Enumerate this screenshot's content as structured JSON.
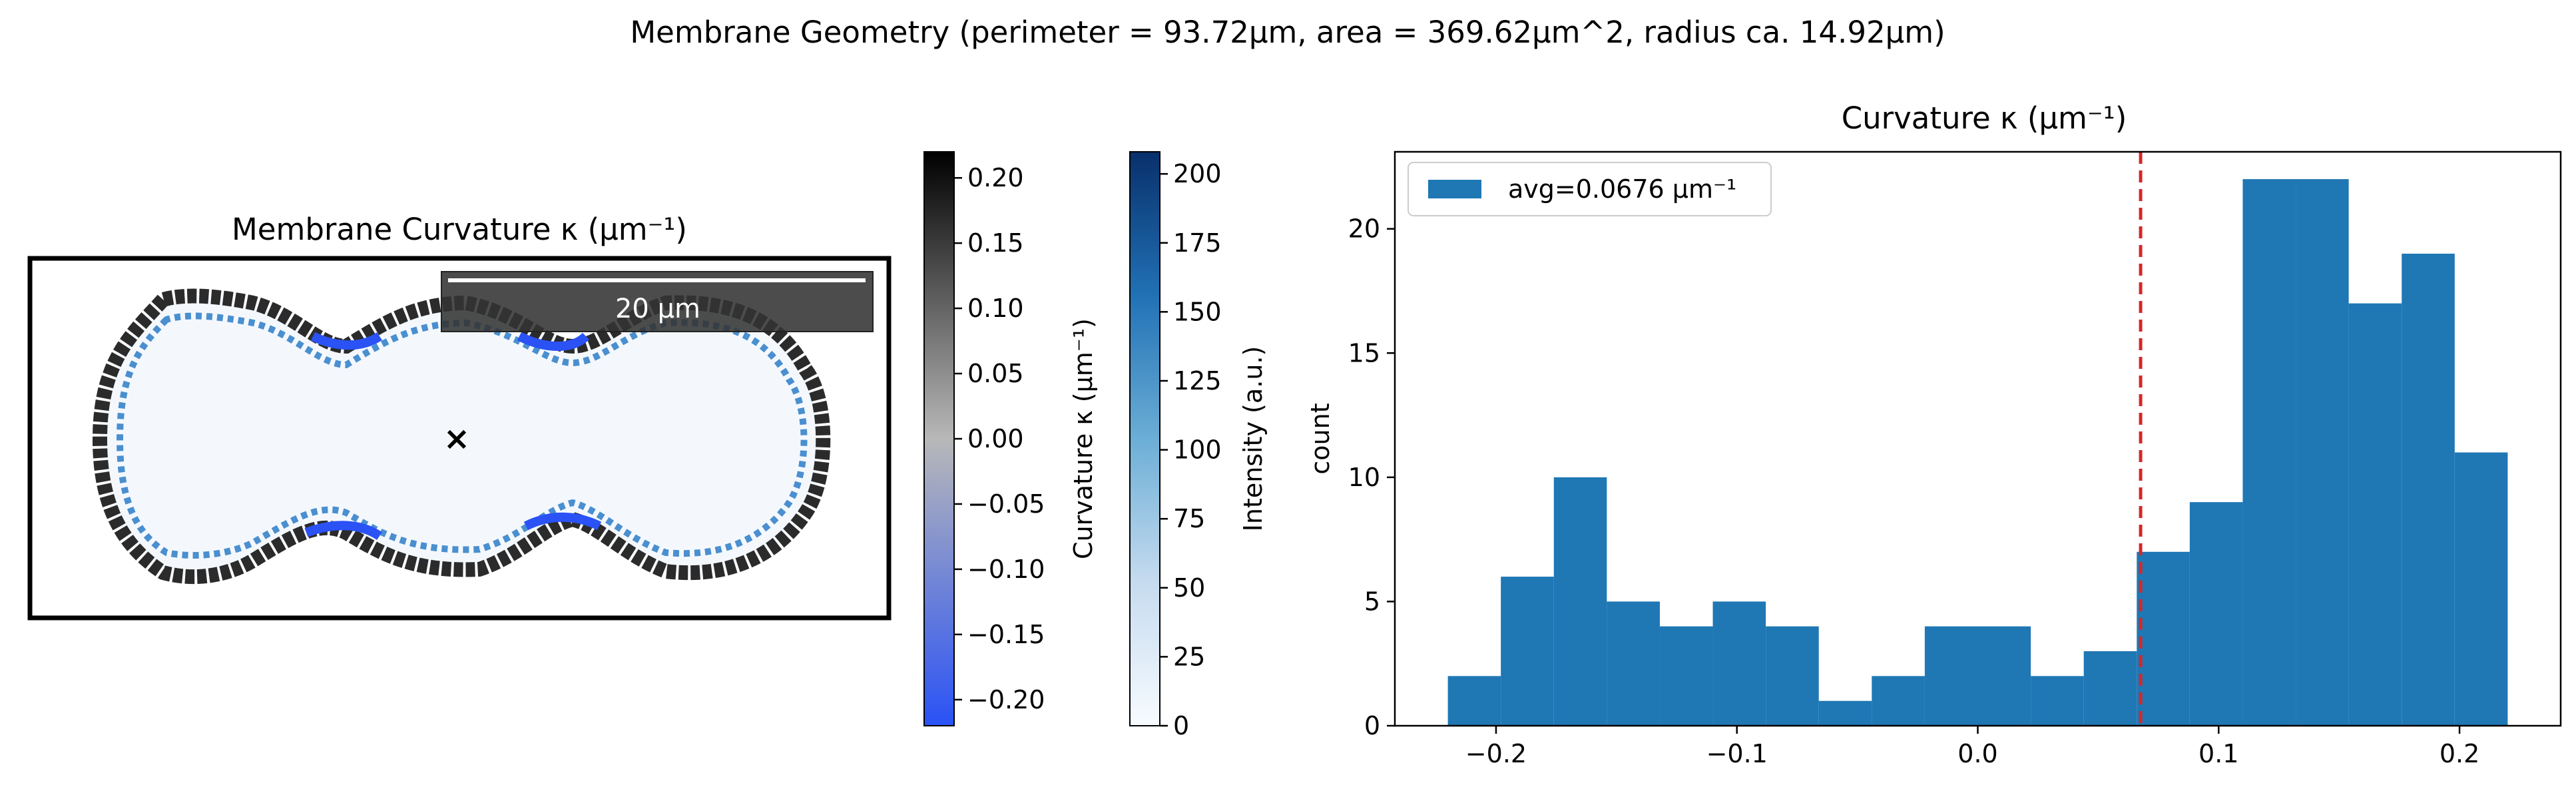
{
  "figure": {
    "suptitle": "Membrane Geometry (perimeter = 93.72μm, area = 369.62μm^2, radius ca. 14.92μm)"
  },
  "panels": {
    "membrane": {
      "title": "Membrane Curvature κ (μm⁻¹)",
      "scalebar_label": "20 μm",
      "center_marker": "×"
    },
    "curvature_colorbar": {
      "label": "Curvature κ (μm⁻¹)",
      "range": [
        -0.22,
        0.22
      ],
      "ticks": [
        "0.20",
        "0.15",
        "0.10",
        "0.05",
        "0.00",
        "−0.05",
        "−0.10",
        "−0.15",
        "−0.20"
      ],
      "colors": {
        "low": "#2a52f5",
        "mid": "#b8b8b8",
        "high": "#000000"
      }
    },
    "intensity_colorbar": {
      "label": "Intensity (a.u.)",
      "range": [
        0,
        208
      ],
      "ticks": [
        "200",
        "175",
        "150",
        "125",
        "100",
        "75",
        "50",
        "25",
        "0"
      ],
      "colors": {
        "low": "#f7fbff",
        "mid": "#6baed6",
        "high": "#08306b"
      }
    }
  },
  "chart_data": {
    "type": "bar",
    "title": "Curvature κ (μm⁻¹)",
    "xlabel": "",
    "ylabel": "count",
    "bin_edges": [
      -0.22,
      -0.198,
      -0.176,
      -0.154,
      -0.132,
      -0.11,
      -0.088,
      -0.066,
      -0.044,
      -0.022,
      0.0,
      0.022,
      0.044,
      0.066,
      0.088,
      0.11,
      0.132,
      0.154,
      0.176,
      0.198,
      0.22
    ],
    "counts": [
      2,
      6,
      10,
      5,
      4,
      5,
      4,
      1,
      2,
      4,
      4,
      2,
      3,
      7,
      9,
      22,
      22,
      17,
      19,
      11
    ],
    "bar_color": "#1f77b4",
    "mean_line": {
      "value": 0.0676,
      "color": "#d62728",
      "style": "dashed"
    },
    "legend": {
      "label": "avg=0.0676 μm⁻¹",
      "placement": "upper-left"
    },
    "xlim": [
      -0.242,
      0.242
    ],
    "ylim": [
      0,
      23.1
    ],
    "xticks": [
      "−0.2",
      "−0.1",
      "0.0",
      "0.1",
      "0.2"
    ],
    "yticks": [
      "0",
      "5",
      "10",
      "15",
      "20"
    ]
  }
}
